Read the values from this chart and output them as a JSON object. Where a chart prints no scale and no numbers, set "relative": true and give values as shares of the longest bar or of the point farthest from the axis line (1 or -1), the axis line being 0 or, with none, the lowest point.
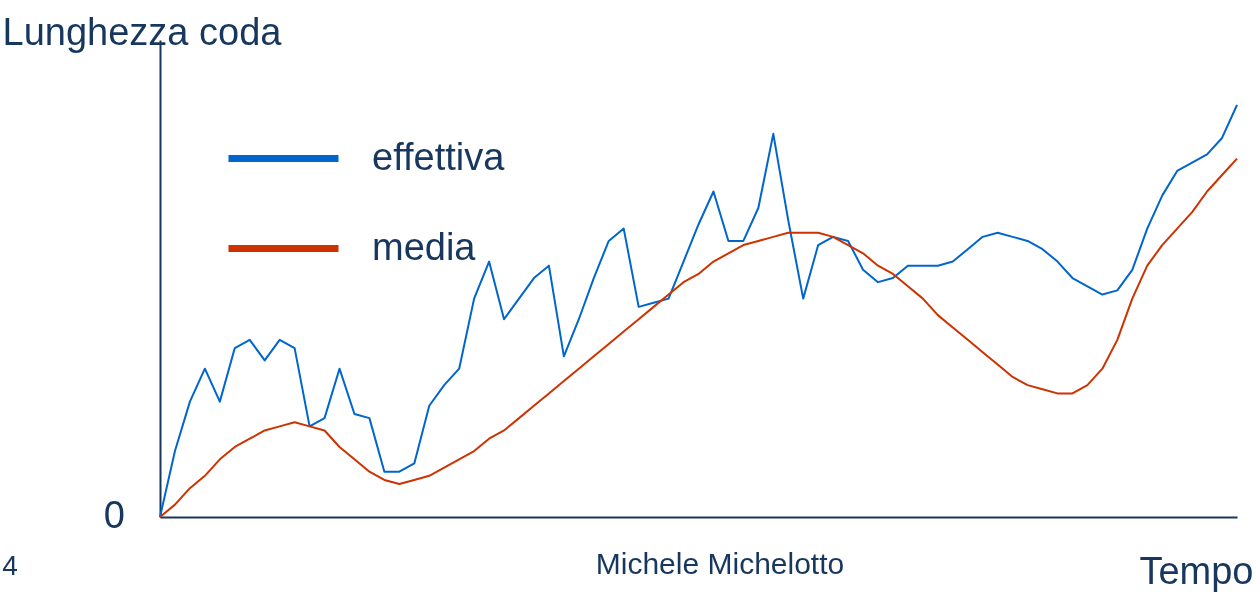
{
  "chart_data": {
    "type": "line",
    "relative": true,
    "ylabel": "Lunghezza coda",
    "xlabel": "Tempo",
    "categories": [
      null,
      null,
      null,
      null,
      null,
      null,
      null,
      null,
      null,
      null,
      null,
      null,
      null,
      null,
      null,
      null,
      null,
      null,
      null,
      null,
      null,
      null,
      null,
      null,
      null,
      null,
      null,
      null,
      null,
      null,
      null,
      null,
      null,
      null,
      null,
      null,
      null,
      null,
      null,
      null,
      null,
      null,
      null,
      null,
      null,
      null,
      null,
      null,
      null,
      null,
      null,
      null,
      null,
      null,
      null,
      null,
      null,
      null,
      null,
      null,
      null,
      null,
      null,
      null,
      null,
      null,
      null,
      null,
      null,
      null,
      null,
      null,
      null
    ],
    "series": [
      {
        "name": "effettiva",
        "color": "#0066cc",
        "values": [
          0,
          0.16,
          0.28,
          0.36,
          0.28,
          0.41,
          0.43,
          0.38,
          0.43,
          0.41,
          0.22,
          0.24,
          0.36,
          0.25,
          0.24,
          0.11,
          0.11,
          0.13,
          0.27,
          0.32,
          0.36,
          0.53,
          0.62,
          0.48,
          0.53,
          0.58,
          0.61,
          0.39,
          0.48,
          0.58,
          0.67,
          0.7,
          0.51,
          0.52,
          0.53,
          0.62,
          0.71,
          0.79,
          0.67,
          0.67,
          0.75,
          0.93,
          0.72,
          0.53,
          0.66,
          0.68,
          0.67,
          0.6,
          0.57,
          0.58,
          0.61,
          0.61,
          0.61,
          0.62,
          0.65,
          0.68,
          0.69,
          0.68,
          0.67,
          0.65,
          0.62,
          0.58,
          0.56,
          0.54,
          0.55,
          0.6,
          0.7,
          0.78,
          0.84,
          0.86,
          0.88,
          0.92,
          1
        ]
      },
      {
        "name": "media",
        "color": "#cc3300",
        "values": [
          0,
          0.03,
          0.07,
          0.1,
          0.14,
          0.17,
          0.19,
          0.21,
          0.22,
          0.23,
          0.22,
          0.21,
          0.17,
          0.14,
          0.11,
          0.09,
          0.08,
          0.09,
          0.1,
          0.12,
          0.14,
          0.16,
          0.19,
          0.21,
          0.24,
          0.27,
          0.3,
          0.33,
          0.36,
          0.39,
          0.42,
          0.45,
          0.48,
          0.51,
          0.54,
          0.57,
          0.59,
          0.62,
          0.64,
          0.66,
          0.67,
          0.68,
          0.69,
          0.69,
          0.69,
          0.68,
          0.66,
          0.64,
          0.61,
          0.59,
          0.56,
          0.53,
          0.49,
          0.46,
          0.43,
          0.4,
          0.37,
          0.34,
          0.32,
          0.31,
          0.3,
          0.3,
          0.32,
          0.36,
          0.43,
          0.53,
          0.61,
          0.66,
          0.7,
          0.74,
          0.79,
          0.83,
          0.87
        ]
      }
    ],
    "legend": "top left",
    "grid": false,
    "marker": "none",
    "line_style": "solid",
    "annotations": [
      "0",
      "4",
      "Michele Michelotto"
    ]
  }
}
